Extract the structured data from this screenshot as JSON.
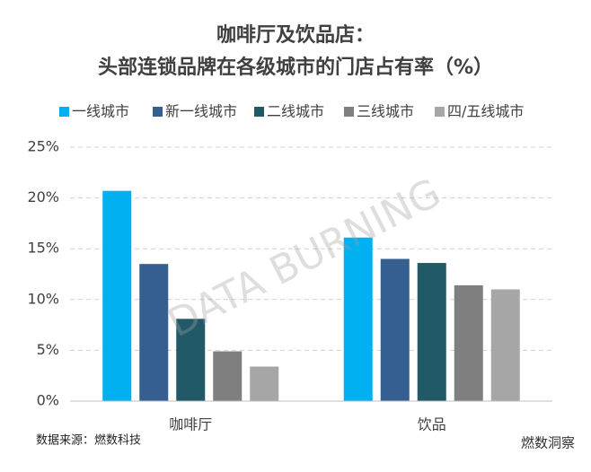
{
  "chart_data": {
    "type": "bar",
    "title": "咖啡厅及饮品店：",
    "subtitle": "头部连锁品牌在各级城市的门店占有率（%）",
    "categories": [
      "咖啡厅",
      "饮品"
    ],
    "series": [
      {
        "name": "一线城市",
        "color": "#00b0f0",
        "values": [
          20.7,
          16.1
        ]
      },
      {
        "name": "新一线城市",
        "color": "#365f91",
        "values": [
          13.5,
          14.0
        ]
      },
      {
        "name": "二线城市",
        "color": "#215966",
        "values": [
          8.1,
          13.6
        ]
      },
      {
        "name": "三线城市",
        "color": "#7f7f7f",
        "values": [
          4.9,
          11.4
        ]
      },
      {
        "name": "四/五线城市",
        "color": "#a6a6a6",
        "values": [
          3.4,
          11.0
        ]
      }
    ],
    "ylim": [
      0,
      25
    ],
    "yticks": [
      {
        "value": 0,
        "label": "0%"
      },
      {
        "value": 5,
        "label": "5%"
      },
      {
        "value": 10,
        "label": "10%"
      },
      {
        "value": 15,
        "label": "15%"
      },
      {
        "value": 20,
        "label": "20%"
      },
      {
        "value": 25,
        "label": "25%"
      }
    ],
    "grid": true,
    "legend": "top",
    "source": "数据来源：燃数科技",
    "watermark": "DATA BURNING",
    "logo": "燃数洞察"
  }
}
